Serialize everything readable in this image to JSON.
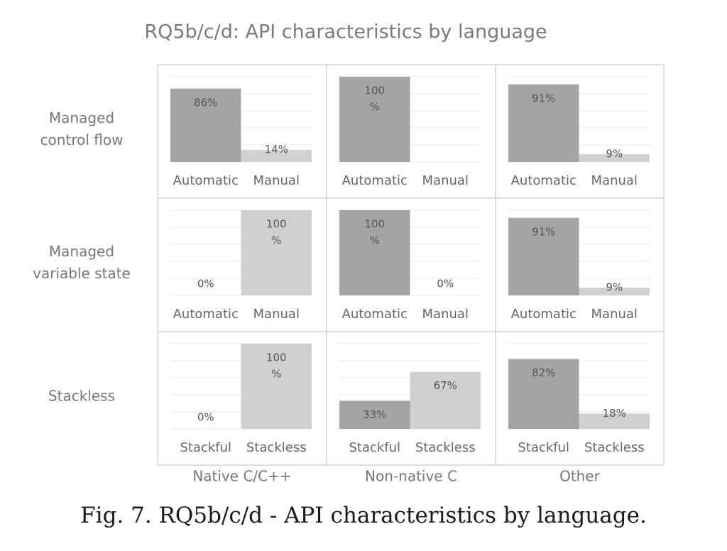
{
  "chart_data": {
    "type": "bar",
    "title": "RQ5b/c/d: API characteristics by language",
    "columns": [
      "Native C/C++",
      "Non-native C",
      "Other"
    ],
    "rows": [
      {
        "label": "Managed control flow",
        "categories": [
          "Automatic",
          "Manual"
        ],
        "cells": [
          {
            "values": [
              86,
              14
            ],
            "labels": [
              "86%",
              "14%"
            ]
          },
          {
            "values": [
              100,
              0
            ],
            "labels": [
              "100 %",
              ""
            ]
          },
          {
            "values": [
              91,
              9
            ],
            "labels": [
              "91%",
              "9%"
            ]
          }
        ]
      },
      {
        "label": "Managed variable state",
        "categories": [
          "Automatic",
          "Manual"
        ],
        "cells": [
          {
            "values": [
              0,
              100
            ],
            "labels": [
              "0%",
              "100 %"
            ]
          },
          {
            "values": [
              100,
              0
            ],
            "labels": [
              "100 %",
              "0%"
            ]
          },
          {
            "values": [
              91,
              9
            ],
            "labels": [
              "91%",
              "9%"
            ]
          }
        ]
      },
      {
        "label": "Stackless",
        "categories": [
          "Stackful",
          "Stackless"
        ],
        "cells": [
          {
            "values": [
              0,
              100
            ],
            "labels": [
              "0%",
              "100 %"
            ]
          },
          {
            "values": [
              33,
              67
            ],
            "labels": [
              "33%",
              "67%"
            ]
          },
          {
            "values": [
              82,
              18
            ],
            "labels": [
              "82%",
              "18%"
            ]
          }
        ]
      }
    ],
    "ylim": [
      0,
      100
    ],
    "grid": true,
    "colors": [
      "#a4a4a7",
      "#d0d0d1"
    ]
  },
  "caption": "Fig. 7.  RQ5b/c/d - API characteristics by language."
}
